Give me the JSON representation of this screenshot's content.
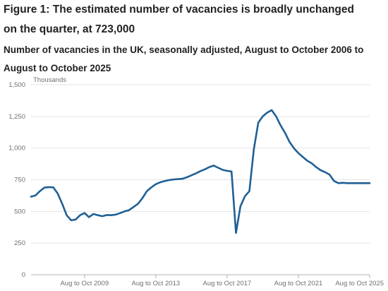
{
  "figure": {
    "title": "Figure 1: The estimated number of vacancies is broadly unchanged on the quarter, at 723,000",
    "subtitle": "Number of vacancies in the UK, seasonally adjusted, August to October 2006 to August to October 2025"
  },
  "chart_data": {
    "type": "line",
    "unit_label": "Thousands",
    "ylim": [
      0,
      1500
    ],
    "y_ticks": [
      0,
      250,
      500,
      750,
      1000,
      1250,
      1500
    ],
    "y_tick_labels": [
      "0",
      "250",
      "500",
      "750",
      "1,000",
      "1,250",
      "1,500"
    ],
    "xlim": [
      2006.67,
      2025.67
    ],
    "x_ticks": [
      2009.67,
      2013.67,
      2017.67,
      2021.67,
      2025.67
    ],
    "x_tick_labels": [
      "Aug to Oct 2009",
      "Aug to Oct 2013",
      "Aug to Oct 2017",
      "Aug to Oct 2021",
      "Aug to Oct 2025"
    ],
    "grid": "horizontal",
    "line_color": "#206095",
    "series": [
      {
        "x": [
          2006.67,
          2006.92,
          2007.17,
          2007.42,
          2007.67,
          2007.92,
          2008.17,
          2008.42,
          2008.67,
          2008.92,
          2009.17,
          2009.42,
          2009.67,
          2009.92,
          2010.17,
          2010.42,
          2010.67,
          2010.92,
          2011.17,
          2011.42,
          2011.67,
          2011.92,
          2012.17,
          2012.42,
          2012.67,
          2012.92,
          2013.17,
          2013.42,
          2013.67,
          2013.92,
          2014.17,
          2014.42,
          2014.67,
          2014.92,
          2015.17,
          2015.42,
          2015.67,
          2015.92,
          2016.17,
          2016.42,
          2016.67,
          2016.92,
          2017.17,
          2017.42,
          2017.67,
          2017.92,
          2018.17,
          2018.42,
          2018.67,
          2018.92,
          2019.17,
          2019.42,
          2019.67,
          2019.92,
          2020.17,
          2020.42,
          2020.67,
          2020.92,
          2021.17,
          2021.42,
          2021.67,
          2021.92,
          2022.17,
          2022.42,
          2022.67,
          2022.92,
          2023.17,
          2023.42,
          2023.67,
          2023.92,
          2024.17,
          2024.42,
          2024.67,
          2024.92,
          2025.17,
          2025.42,
          2025.67
        ],
        "values": [
          617,
          626,
          660,
          688,
          692,
          690,
          640,
          560,
          470,
          430,
          436,
          470,
          488,
          455,
          480,
          470,
          462,
          472,
          470,
          475,
          487,
          500,
          510,
          535,
          560,
          605,
          660,
          690,
          715,
          730,
          740,
          748,
          752,
          755,
          758,
          770,
          785,
          800,
          818,
          832,
          850,
          862,
          845,
          828,
          820,
          815,
          330,
          540,
          620,
          660,
          990,
          1200,
          1250,
          1280,
          1300,
          1250,
          1180,
          1120,
          1050,
          1000,
          960,
          930,
          900,
          880,
          850,
          825,
          810,
          790,
          740,
          723,
          726,
          723,
          723,
          723,
          723,
          723,
          723
        ]
      }
    ]
  }
}
